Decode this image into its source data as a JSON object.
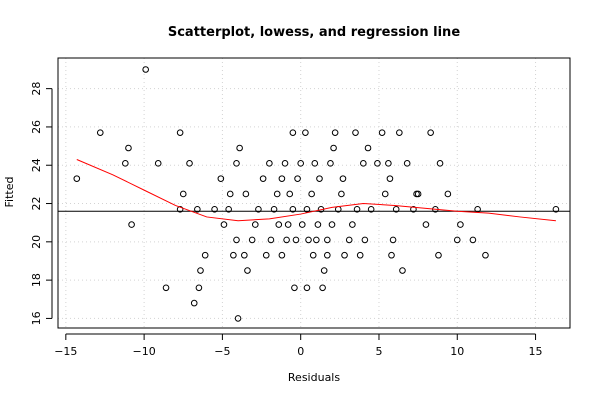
{
  "chart_data": {
    "type": "scatter",
    "title": "Scatterplot, lowess, and regression line",
    "xlabel": "Residuals",
    "ylabel": "Fitted",
    "xlim": [
      -15.5,
      17.2
    ],
    "ylim": [
      15.5,
      29.6
    ],
    "x_ticks": [
      -15,
      -10,
      -5,
      0,
      5,
      10,
      15
    ],
    "y_ticks": [
      16,
      18,
      20,
      22,
      24,
      26,
      28
    ],
    "grid": true,
    "point_color": "#000000",
    "lowess_color": "#ff0000",
    "regression_color": "#000000",
    "regression_line": {
      "y": 21.6
    },
    "lowess": {
      "x": [
        -14.3,
        -12,
        -10,
        -8,
        -6,
        -4,
        -2,
        0,
        2,
        4,
        6,
        8,
        10,
        12,
        14,
        16.3
      ],
      "y": [
        24.3,
        23.5,
        22.7,
        21.9,
        21.3,
        21.1,
        21.2,
        21.45,
        21.8,
        22.0,
        21.9,
        21.75,
        21.6,
        21.5,
        21.3,
        21.1
      ]
    },
    "points": [
      [
        -14.3,
        23.3
      ],
      [
        -12.8,
        25.7
      ],
      [
        -11,
        24.9
      ],
      [
        -11.2,
        24.1
      ],
      [
        -10.8,
        20.9
      ],
      [
        -9.9,
        29.0
      ],
      [
        -9.1,
        24.1
      ],
      [
        -8.6,
        17.6
      ],
      [
        -7.7,
        25.7
      ],
      [
        -7.5,
        22.5
      ],
      [
        -7.7,
        21.7
      ],
      [
        -7.1,
        24.1
      ],
      [
        -6.6,
        21.7
      ],
      [
        -6.5,
        17.6
      ],
      [
        -6.8,
        16.8
      ],
      [
        -6.4,
        18.5
      ],
      [
        -6.1,
        19.3
      ],
      [
        -5.5,
        21.7
      ],
      [
        -5.1,
        23.3
      ],
      [
        -4.9,
        20.9
      ],
      [
        -4.6,
        21.7
      ],
      [
        -4.5,
        22.5
      ],
      [
        -4.3,
        19.3
      ],
      [
        -4.1,
        20.1
      ],
      [
        -4.1,
        24.1
      ],
      [
        -3.9,
        24.9
      ],
      [
        -4.0,
        16.0
      ],
      [
        -3.6,
        19.3
      ],
      [
        -3.5,
        22.5
      ],
      [
        -3.4,
        18.5
      ],
      [
        -3.1,
        20.1
      ],
      [
        -2.9,
        20.9
      ],
      [
        -2.7,
        21.7
      ],
      [
        -2.4,
        23.3
      ],
      [
        -2.2,
        19.3
      ],
      [
        -2.0,
        24.1
      ],
      [
        -1.9,
        20.1
      ],
      [
        -1.7,
        21.7
      ],
      [
        -1.5,
        22.5
      ],
      [
        -1.4,
        20.9
      ],
      [
        -1.2,
        23.3
      ],
      [
        -1.2,
        19.3
      ],
      [
        -1.0,
        24.1
      ],
      [
        -0.9,
        20.1
      ],
      [
        -0.8,
        20.9
      ],
      [
        -0.7,
        22.5
      ],
      [
        -0.5,
        25.7
      ],
      [
        -0.5,
        21.7
      ],
      [
        -0.4,
        17.6
      ],
      [
        -0.3,
        20.1
      ],
      [
        -0.2,
        23.3
      ],
      [
        0.0,
        24.1
      ],
      [
        0.1,
        20.9
      ],
      [
        0.3,
        25.7
      ],
      [
        0.4,
        21.7
      ],
      [
        0.4,
        17.6
      ],
      [
        0.5,
        20.1
      ],
      [
        0.7,
        22.5
      ],
      [
        0.8,
        19.3
      ],
      [
        0.9,
        24.1
      ],
      [
        1.0,
        20.1
      ],
      [
        1.1,
        20.9
      ],
      [
        1.2,
        23.3
      ],
      [
        1.3,
        21.7
      ],
      [
        1.4,
        17.6
      ],
      [
        1.5,
        18.5
      ],
      [
        1.7,
        20.1
      ],
      [
        1.7,
        19.3
      ],
      [
        1.9,
        24.1
      ],
      [
        2.0,
        20.9
      ],
      [
        2.1,
        24.9
      ],
      [
        2.2,
        25.7
      ],
      [
        2.4,
        21.7
      ],
      [
        2.6,
        22.5
      ],
      [
        2.7,
        23.3
      ],
      [
        2.8,
        19.3
      ],
      [
        3.1,
        20.1
      ],
      [
        3.3,
        20.9
      ],
      [
        3.5,
        25.7
      ],
      [
        3.6,
        21.7
      ],
      [
        3.8,
        19.3
      ],
      [
        4.0,
        24.1
      ],
      [
        4.1,
        20.1
      ],
      [
        4.3,
        24.9
      ],
      [
        4.5,
        21.7
      ],
      [
        4.9,
        24.1
      ],
      [
        5.2,
        25.7
      ],
      [
        5.4,
        22.5
      ],
      [
        5.6,
        24.1
      ],
      [
        5.7,
        23.3
      ],
      [
        5.8,
        19.3
      ],
      [
        5.9,
        20.1
      ],
      [
        6.1,
        21.7
      ],
      [
        6.3,
        25.7
      ],
      [
        6.5,
        18.5
      ],
      [
        6.8,
        24.1
      ],
      [
        7.2,
        21.7
      ],
      [
        7.4,
        22.5
      ],
      [
        7.5,
        22.5
      ],
      [
        8.0,
        20.9
      ],
      [
        8.3,
        25.7
      ],
      [
        8.6,
        21.7
      ],
      [
        8.8,
        19.3
      ],
      [
        8.9,
        24.1
      ],
      [
        9.4,
        22.5
      ],
      [
        10.0,
        20.1
      ],
      [
        10.2,
        20.9
      ],
      [
        11.0,
        20.1
      ],
      [
        11.3,
        21.7
      ],
      [
        11.8,
        19.3
      ],
      [
        16.3,
        21.7
      ]
    ]
  }
}
